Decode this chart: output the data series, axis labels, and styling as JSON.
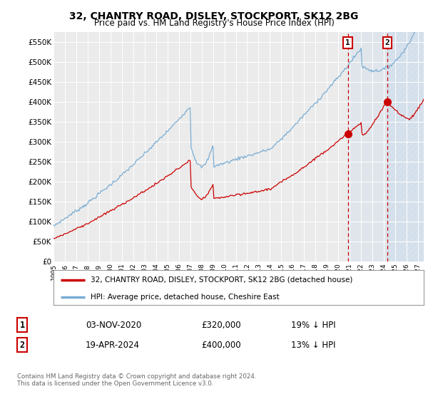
{
  "title": "32, CHANTRY ROAD, DISLEY, STOCKPORT, SK12 2BG",
  "subtitle": "Price paid vs. HM Land Registry's House Price Index (HPI)",
  "ylabel_ticks": [
    "£0",
    "£50K",
    "£100K",
    "£150K",
    "£200K",
    "£250K",
    "£300K",
    "£350K",
    "£400K",
    "£450K",
    "£500K",
    "£550K"
  ],
  "ytick_values": [
    0,
    50000,
    100000,
    150000,
    200000,
    250000,
    300000,
    350000,
    400000,
    450000,
    500000,
    550000
  ],
  "xlim_years": [
    1995,
    2027
  ],
  "ylim": [
    0,
    575000
  ],
  "sale1_date": 2020.84,
  "sale1_price": 320000,
  "sale1_label": "1",
  "sale2_date": 2024.3,
  "sale2_price": 400000,
  "sale2_label": "2",
  "hpi_color": "#7aadd4",
  "property_color": "#cc0000",
  "vline_color": "#cc0000",
  "marker_color": "#cc0000",
  "legend_property": "32, CHANTRY ROAD, DISLEY, STOCKPORT, SK12 2BG (detached house)",
  "legend_hpi": "HPI: Average price, detached house, Cheshire East",
  "table_row1": [
    "1",
    "03-NOV-2020",
    "£320,000",
    "19% ↓ HPI"
  ],
  "table_row2": [
    "2",
    "19-APR-2024",
    "£400,000",
    "13% ↓ HPI"
  ],
  "footer": "Contains HM Land Registry data © Crown copyright and database right 2024.\nThis data is licensed under the Open Government Licence v3.0.",
  "background_color": "#ffffff",
  "plot_bg_color": "#ebebeb"
}
